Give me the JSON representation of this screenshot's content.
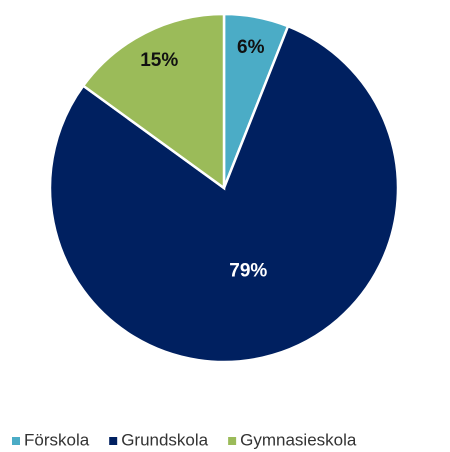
{
  "chart_data": {
    "type": "pie",
    "categories": [
      "Förskola",
      "Grundskola",
      "Gymnasieskola"
    ],
    "values": [
      6,
      79,
      15
    ],
    "value_labels": [
      "6%",
      "79%",
      "15%"
    ],
    "colors": [
      "#4bacc6",
      "#002060",
      "#9bbb59"
    ],
    "legend": "bottom"
  }
}
